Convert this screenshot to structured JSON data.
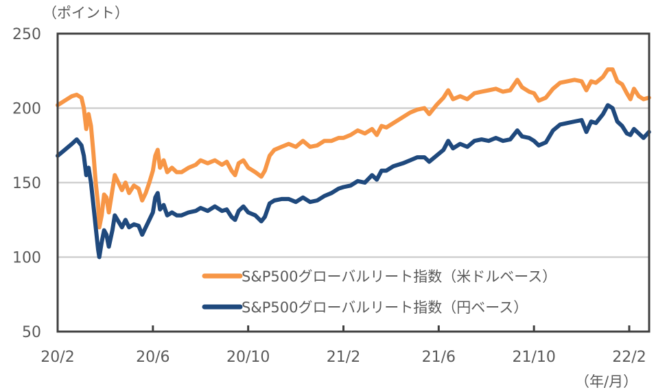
{
  "chart_data": {
    "type": "line",
    "title": "",
    "ylabel": "（ポイント）",
    "xlabel": "（年/月）",
    "ylim": [
      50,
      250
    ],
    "yticks": [
      "250",
      "200",
      "150",
      "100",
      "50"
    ],
    "ytick_values": [
      250,
      200,
      150,
      100,
      50
    ],
    "x_unit": "months since 2020/2",
    "xlim": [
      0,
      24.83
    ],
    "xticks": [
      "20/2",
      "20/6",
      "20/10",
      "21/2",
      "21/6",
      "21/10",
      "22/2"
    ],
    "xtick_values": [
      0,
      4,
      8,
      12,
      16,
      20,
      24
    ],
    "grid": true,
    "legend_position": "bottom-center",
    "series": [
      {
        "name": "S&P500グローバルリート指数（米ドルベース）",
        "color": "#F79646",
        "points": [
          [
            0,
            202
          ],
          [
            0.3,
            205
          ],
          [
            0.6,
            208
          ],
          [
            0.8,
            209
          ],
          [
            1.0,
            207
          ],
          [
            1.1,
            200
          ],
          [
            1.2,
            186
          ],
          [
            1.3,
            196
          ],
          [
            1.4,
            188
          ],
          [
            1.5,
            170
          ],
          [
            1.6,
            150
          ],
          [
            1.7,
            135
          ],
          [
            1.75,
            120
          ],
          [
            1.85,
            128
          ],
          [
            1.95,
            142
          ],
          [
            2.05,
            140
          ],
          [
            2.15,
            130
          ],
          [
            2.3,
            145
          ],
          [
            2.4,
            155
          ],
          [
            2.55,
            150
          ],
          [
            2.7,
            145
          ],
          [
            2.85,
            150
          ],
          [
            3.0,
            143
          ],
          [
            3.2,
            148
          ],
          [
            3.4,
            146
          ],
          [
            3.55,
            138
          ],
          [
            3.7,
            143
          ],
          [
            3.85,
            150
          ],
          [
            4.0,
            158
          ],
          [
            4.1,
            168
          ],
          [
            4.2,
            172
          ],
          [
            4.3,
            160
          ],
          [
            4.45,
            165
          ],
          [
            4.6,
            157
          ],
          [
            4.8,
            160
          ],
          [
            5.0,
            157
          ],
          [
            5.2,
            157
          ],
          [
            5.5,
            160
          ],
          [
            5.8,
            162
          ],
          [
            6.0,
            165
          ],
          [
            6.3,
            163
          ],
          [
            6.6,
            165
          ],
          [
            6.9,
            162
          ],
          [
            7.1,
            164
          ],
          [
            7.3,
            158
          ],
          [
            7.45,
            155
          ],
          [
            7.6,
            163
          ],
          [
            7.8,
            165
          ],
          [
            8.0,
            160
          ],
          [
            8.3,
            157
          ],
          [
            8.55,
            154
          ],
          [
            8.7,
            158
          ],
          [
            8.9,
            168
          ],
          [
            9.1,
            172
          ],
          [
            9.4,
            174
          ],
          [
            9.7,
            176
          ],
          [
            10.0,
            174
          ],
          [
            10.3,
            178
          ],
          [
            10.6,
            174
          ],
          [
            10.9,
            175
          ],
          [
            11.2,
            178
          ],
          [
            11.5,
            178
          ],
          [
            11.8,
            180
          ],
          [
            12.0,
            180
          ],
          [
            12.3,
            182
          ],
          [
            12.6,
            185
          ],
          [
            12.9,
            183
          ],
          [
            13.2,
            186
          ],
          [
            13.4,
            182
          ],
          [
            13.6,
            188
          ],
          [
            13.8,
            187
          ],
          [
            14.1,
            190
          ],
          [
            14.5,
            194
          ],
          [
            14.8,
            197
          ],
          [
            15.1,
            199
          ],
          [
            15.4,
            200
          ],
          [
            15.6,
            196
          ],
          [
            15.9,
            202
          ],
          [
            16.2,
            207
          ],
          [
            16.4,
            212
          ],
          [
            16.6,
            206
          ],
          [
            16.9,
            208
          ],
          [
            17.2,
            206
          ],
          [
            17.5,
            210
          ],
          [
            17.8,
            211
          ],
          [
            18.1,
            212
          ],
          [
            18.4,
            213
          ],
          [
            18.7,
            211
          ],
          [
            19.0,
            212
          ],
          [
            19.3,
            219
          ],
          [
            19.5,
            214
          ],
          [
            19.8,
            211
          ],
          [
            20.0,
            210
          ],
          [
            20.2,
            205
          ],
          [
            20.5,
            207
          ],
          [
            20.8,
            213
          ],
          [
            21.1,
            217
          ],
          [
            21.4,
            218
          ],
          [
            21.7,
            219
          ],
          [
            22.0,
            218
          ],
          [
            22.2,
            212
          ],
          [
            22.4,
            218
          ],
          [
            22.6,
            217
          ],
          [
            22.9,
            221
          ],
          [
            23.1,
            226
          ],
          [
            23.3,
            226
          ],
          [
            23.5,
            218
          ],
          [
            23.7,
            216
          ],
          [
            23.9,
            210
          ],
          [
            24.05,
            206
          ],
          [
            24.2,
            213
          ],
          [
            24.4,
            208
          ],
          [
            24.6,
            206
          ],
          [
            24.83,
            207
          ]
        ]
      },
      {
        "name": "S&P500グローバルリート指数（円ベース）",
        "color": "#1F497D",
        "points": [
          [
            0,
            168
          ],
          [
            0.3,
            172
          ],
          [
            0.6,
            176
          ],
          [
            0.8,
            179
          ],
          [
            1.0,
            175
          ],
          [
            1.1,
            168
          ],
          [
            1.2,
            155
          ],
          [
            1.3,
            160
          ],
          [
            1.4,
            150
          ],
          [
            1.5,
            135
          ],
          [
            1.6,
            120
          ],
          [
            1.7,
            105
          ],
          [
            1.75,
            100
          ],
          [
            1.85,
            110
          ],
          [
            1.95,
            118
          ],
          [
            2.05,
            115
          ],
          [
            2.15,
            107
          ],
          [
            2.3,
            118
          ],
          [
            2.4,
            128
          ],
          [
            2.55,
            124
          ],
          [
            2.7,
            120
          ],
          [
            2.85,
            125
          ],
          [
            3.0,
            120
          ],
          [
            3.2,
            122
          ],
          [
            3.4,
            121
          ],
          [
            3.55,
            115
          ],
          [
            3.7,
            120
          ],
          [
            3.85,
            125
          ],
          [
            4.0,
            130
          ],
          [
            4.1,
            140
          ],
          [
            4.2,
            143
          ],
          [
            4.3,
            132
          ],
          [
            4.45,
            135
          ],
          [
            4.6,
            128
          ],
          [
            4.8,
            130
          ],
          [
            5.0,
            128
          ],
          [
            5.2,
            128
          ],
          [
            5.5,
            130
          ],
          [
            5.8,
            131
          ],
          [
            6.0,
            133
          ],
          [
            6.3,
            131
          ],
          [
            6.6,
            134
          ],
          [
            6.9,
            131
          ],
          [
            7.1,
            132
          ],
          [
            7.3,
            127
          ],
          [
            7.45,
            125
          ],
          [
            7.6,
            131
          ],
          [
            7.8,
            134
          ],
          [
            8.0,
            130
          ],
          [
            8.3,
            128
          ],
          [
            8.55,
            124
          ],
          [
            8.7,
            127
          ],
          [
            8.9,
            136
          ],
          [
            9.1,
            138
          ],
          [
            9.4,
            139
          ],
          [
            9.7,
            139
          ],
          [
            10.0,
            137
          ],
          [
            10.3,
            140
          ],
          [
            10.6,
            137
          ],
          [
            10.9,
            138
          ],
          [
            11.2,
            141
          ],
          [
            11.5,
            143
          ],
          [
            11.8,
            146
          ],
          [
            12.0,
            147
          ],
          [
            12.3,
            148
          ],
          [
            12.6,
            151
          ],
          [
            12.9,
            150
          ],
          [
            13.2,
            155
          ],
          [
            13.4,
            152
          ],
          [
            13.6,
            158
          ],
          [
            13.8,
            158
          ],
          [
            14.1,
            161
          ],
          [
            14.5,
            163
          ],
          [
            14.8,
            165
          ],
          [
            15.1,
            167
          ],
          [
            15.4,
            167
          ],
          [
            15.6,
            164
          ],
          [
            15.9,
            168
          ],
          [
            16.2,
            172
          ],
          [
            16.4,
            178
          ],
          [
            16.6,
            173
          ],
          [
            16.9,
            176
          ],
          [
            17.2,
            174
          ],
          [
            17.5,
            178
          ],
          [
            17.8,
            179
          ],
          [
            18.1,
            178
          ],
          [
            18.4,
            180
          ],
          [
            18.7,
            178
          ],
          [
            19.0,
            179
          ],
          [
            19.3,
            185
          ],
          [
            19.5,
            181
          ],
          [
            19.8,
            180
          ],
          [
            20.0,
            178
          ],
          [
            20.2,
            175
          ],
          [
            20.5,
            177
          ],
          [
            20.8,
            185
          ],
          [
            21.1,
            189
          ],
          [
            21.4,
            190
          ],
          [
            21.7,
            191
          ],
          [
            22.0,
            192
          ],
          [
            22.2,
            184
          ],
          [
            22.4,
            191
          ],
          [
            22.6,
            190
          ],
          [
            22.9,
            196
          ],
          [
            23.1,
            202
          ],
          [
            23.3,
            200
          ],
          [
            23.5,
            191
          ],
          [
            23.7,
            188
          ],
          [
            23.9,
            183
          ],
          [
            24.05,
            182
          ],
          [
            24.2,
            186
          ],
          [
            24.4,
            183
          ],
          [
            24.6,
            180
          ],
          [
            24.83,
            184
          ]
        ]
      }
    ]
  }
}
